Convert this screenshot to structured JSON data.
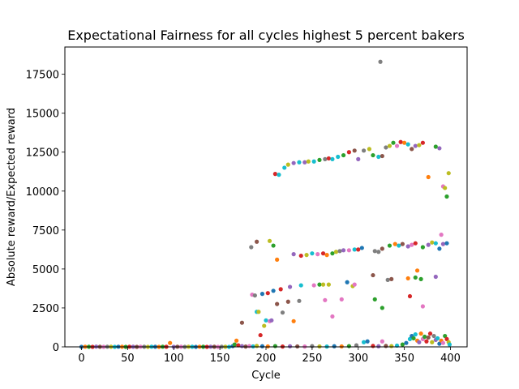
{
  "chart_data": {
    "type": "scatter",
    "title": "Expectational Fairness for all cycles highest 5 percent bakers",
    "xlabel": "Cycle",
    "ylabel": "Absolute reward/Expected reward",
    "xlim": [
      -18,
      418
    ],
    "ylim": [
      0,
      19250
    ],
    "xticks": [
      0,
      50,
      100,
      150,
      200,
      250,
      300,
      350,
      400
    ],
    "yticks": [
      0,
      2500,
      5000,
      7500,
      10000,
      12500,
      15000,
      17500
    ],
    "grid": false,
    "legend": "none",
    "palette": [
      "#1f77b4",
      "#ff7f0e",
      "#2ca02c",
      "#d62728",
      "#9467bd",
      "#8c564b",
      "#e377c2",
      "#7f7f7f",
      "#bcbd22",
      "#17becf"
    ],
    "points": [
      {
        "x": 0,
        "y": 0,
        "c": "#1f77b4"
      },
      {
        "x": 4,
        "y": 10,
        "c": "#ff7f0e"
      },
      {
        "x": 8,
        "y": 5,
        "c": "#2ca02c"
      },
      {
        "x": 12,
        "y": 0,
        "c": "#d62728"
      },
      {
        "x": 16,
        "y": 15,
        "c": "#9467bd"
      },
      {
        "x": 20,
        "y": 5,
        "c": "#8c564b"
      },
      {
        "x": 24,
        "y": 0,
        "c": "#e377c2"
      },
      {
        "x": 28,
        "y": 10,
        "c": "#7f7f7f"
      },
      {
        "x": 32,
        "y": 5,
        "c": "#bcbd22"
      },
      {
        "x": 36,
        "y": 0,
        "c": "#17becf"
      },
      {
        "x": 40,
        "y": 10,
        "c": "#1f77b4"
      },
      {
        "x": 44,
        "y": 5,
        "c": "#ff7f0e"
      },
      {
        "x": 48,
        "y": 0,
        "c": "#2ca02c"
      },
      {
        "x": 52,
        "y": 10,
        "c": "#d62728"
      },
      {
        "x": 56,
        "y": 5,
        "c": "#9467bd"
      },
      {
        "x": 60,
        "y": 0,
        "c": "#8c564b"
      },
      {
        "x": 64,
        "y": 10,
        "c": "#e377c2"
      },
      {
        "x": 68,
        "y": 5,
        "c": "#7f7f7f"
      },
      {
        "x": 72,
        "y": 0,
        "c": "#bcbd22"
      },
      {
        "x": 76,
        "y": 10,
        "c": "#17becf"
      },
      {
        "x": 80,
        "y": 5,
        "c": "#1f77b4"
      },
      {
        "x": 84,
        "y": 0,
        "c": "#ff7f0e"
      },
      {
        "x": 88,
        "y": 10,
        "c": "#2ca02c"
      },
      {
        "x": 92,
        "y": 5,
        "c": "#d62728"
      },
      {
        "x": 96,
        "y": 250,
        "c": "#ff7f0e"
      },
      {
        "x": 100,
        "y": 0,
        "c": "#9467bd"
      },
      {
        "x": 104,
        "y": 10,
        "c": "#8c564b"
      },
      {
        "x": 108,
        "y": 5,
        "c": "#e377c2"
      },
      {
        "x": 112,
        "y": 0,
        "c": "#7f7f7f"
      },
      {
        "x": 116,
        "y": 10,
        "c": "#bcbd22"
      },
      {
        "x": 120,
        "y": 5,
        "c": "#17becf"
      },
      {
        "x": 124,
        "y": 0,
        "c": "#1f77b4"
      },
      {
        "x": 128,
        "y": 10,
        "c": "#ff7f0e"
      },
      {
        "x": 132,
        "y": 5,
        "c": "#2ca02c"
      },
      {
        "x": 136,
        "y": 0,
        "c": "#d62728"
      },
      {
        "x": 140,
        "y": 10,
        "c": "#9467bd"
      },
      {
        "x": 144,
        "y": 5,
        "c": "#8c564b"
      },
      {
        "x": 148,
        "y": 0,
        "c": "#e377c2"
      },
      {
        "x": 152,
        "y": 10,
        "c": "#7f7f7f"
      },
      {
        "x": 156,
        "y": 5,
        "c": "#bcbd22"
      },
      {
        "x": 160,
        "y": 0,
        "c": "#17becf"
      },
      {
        "x": 164,
        "y": 50,
        "c": "#1f77b4"
      },
      {
        "x": 166,
        "y": 150,
        "c": "#2ca02c"
      },
      {
        "x": 168,
        "y": 400,
        "c": "#ff7f0e"
      },
      {
        "x": 170,
        "y": 100,
        "c": "#d62728"
      },
      {
        "x": 174,
        "y": 50,
        "c": "#9467bd"
      },
      {
        "x": 178,
        "y": 20,
        "c": "#8c564b"
      },
      {
        "x": 182,
        "y": 50,
        "c": "#e377c2"
      },
      {
        "x": 186,
        "y": 30,
        "c": "#17becf"
      },
      {
        "x": 190,
        "y": 60,
        "c": "#bcbd22"
      },
      {
        "x": 196,
        "y": 40,
        "c": "#1f77b4"
      },
      {
        "x": 202,
        "y": 30,
        "c": "#ff7f0e"
      },
      {
        "x": 210,
        "y": 50,
        "c": "#2ca02c"
      },
      {
        "x": 218,
        "y": 20,
        "c": "#d62728"
      },
      {
        "x": 226,
        "y": 40,
        "c": "#9467bd"
      },
      {
        "x": 234,
        "y": 30,
        "c": "#8c564b"
      },
      {
        "x": 242,
        "y": 20,
        "c": "#e377c2"
      },
      {
        "x": 250,
        "y": 50,
        "c": "#7f7f7f"
      },
      {
        "x": 258,
        "y": 30,
        "c": "#bcbd22"
      },
      {
        "x": 266,
        "y": 20,
        "c": "#17becf"
      },
      {
        "x": 274,
        "y": 40,
        "c": "#1f77b4"
      },
      {
        "x": 282,
        "y": 30,
        "c": "#ff7f0e"
      },
      {
        "x": 290,
        "y": 50,
        "c": "#2ca02c"
      },
      {
        "x": 298,
        "y": 100,
        "c": "#7f7f7f"
      },
      {
        "x": 306,
        "y": 300,
        "c": "#17becf"
      },
      {
        "x": 310,
        "y": 350,
        "c": "#1f77b4"
      },
      {
        "x": 316,
        "y": 60,
        "c": "#d62728"
      },
      {
        "x": 322,
        "y": 40,
        "c": "#9467bd"
      },
      {
        "x": 326,
        "y": 350,
        "c": "#e377c2"
      },
      {
        "x": 330,
        "y": 60,
        "c": "#8c564b"
      },
      {
        "x": 336,
        "y": 50,
        "c": "#bcbd22"
      },
      {
        "x": 342,
        "y": 80,
        "c": "#17becf"
      },
      {
        "x": 348,
        "y": 150,
        "c": "#2ca02c"
      },
      {
        "x": 352,
        "y": 250,
        "c": "#1f77b4"
      },
      {
        "x": 356,
        "y": 500,
        "c": "#17becf"
      },
      {
        "x": 358,
        "y": 700,
        "c": "#1f77b4"
      },
      {
        "x": 360,
        "y": 550,
        "c": "#2ca02c"
      },
      {
        "x": 362,
        "y": 800,
        "c": "#17becf"
      },
      {
        "x": 364,
        "y": 400,
        "c": "#ff7f0e"
      },
      {
        "x": 366,
        "y": 300,
        "c": "#9467bd"
      },
      {
        "x": 368,
        "y": 850,
        "c": "#ff7f0e"
      },
      {
        "x": 370,
        "y": 500,
        "c": "#e377c2"
      },
      {
        "x": 372,
        "y": 650,
        "c": "#2ca02c"
      },
      {
        "x": 374,
        "y": 350,
        "c": "#d62728"
      },
      {
        "x": 376,
        "y": 600,
        "c": "#8c564b"
      },
      {
        "x": 378,
        "y": 850,
        "c": "#d62728"
      },
      {
        "x": 380,
        "y": 300,
        "c": "#bcbd22"
      },
      {
        "x": 382,
        "y": 700,
        "c": "#7f7f7f"
      },
      {
        "x": 384,
        "y": 450,
        "c": "#9467bd"
      },
      {
        "x": 386,
        "y": 550,
        "c": "#17becf"
      },
      {
        "x": 388,
        "y": 200,
        "c": "#1f77b4"
      },
      {
        "x": 390,
        "y": 400,
        "c": "#ff7f0e"
      },
      {
        "x": 392,
        "y": 250,
        "c": "#e377c2"
      },
      {
        "x": 394,
        "y": 700,
        "c": "#2ca02c"
      },
      {
        "x": 396,
        "y": 500,
        "c": "#d62728"
      },
      {
        "x": 398,
        "y": 300,
        "c": "#bcbd22"
      },
      {
        "x": 399,
        "y": 150,
        "c": "#17becf"
      },
      {
        "x": 174,
        "y": 1550,
        "c": "#8c564b"
      },
      {
        "x": 185,
        "y": 3350,
        "c": "#e377c2"
      },
      {
        "x": 188,
        "y": 3300,
        "c": "#7f7f7f"
      },
      {
        "x": 190,
        "y": 2250,
        "c": "#17becf"
      },
      {
        "x": 192,
        "y": 2250,
        "c": "#bcbd22"
      },
      {
        "x": 194,
        "y": 750,
        "c": "#d62728"
      },
      {
        "x": 196,
        "y": 3400,
        "c": "#1f77b4"
      },
      {
        "x": 198,
        "y": 1350,
        "c": "#bcbd22"
      },
      {
        "x": 200,
        "y": 1700,
        "c": "#17becf"
      },
      {
        "x": 202,
        "y": 3450,
        "c": "#d62728"
      },
      {
        "x": 204,
        "y": 1650,
        "c": "#e377c2"
      },
      {
        "x": 206,
        "y": 1700,
        "c": "#9467bd"
      },
      {
        "x": 208,
        "y": 3600,
        "c": "#1f77b4"
      },
      {
        "x": 212,
        "y": 2750,
        "c": "#8c564b"
      },
      {
        "x": 216,
        "y": 3700,
        "c": "#d62728"
      },
      {
        "x": 218,
        "y": 2200,
        "c": "#7f7f7f"
      },
      {
        "x": 224,
        "y": 2900,
        "c": "#8c564b"
      },
      {
        "x": 226,
        "y": 3850,
        "c": "#9467bd"
      },
      {
        "x": 230,
        "y": 1650,
        "c": "#ff7f0e"
      },
      {
        "x": 236,
        "y": 2950,
        "c": "#7f7f7f"
      },
      {
        "x": 238,
        "y": 3950,
        "c": "#17becf"
      },
      {
        "x": 252,
        "y": 3950,
        "c": "#e377c2"
      },
      {
        "x": 258,
        "y": 4000,
        "c": "#2ca02c"
      },
      {
        "x": 262,
        "y": 4000,
        "c": "#bcbd22"
      },
      {
        "x": 264,
        "y": 3000,
        "c": "#e377c2"
      },
      {
        "x": 268,
        "y": 4000,
        "c": "#bcbd22"
      },
      {
        "x": 272,
        "y": 1950,
        "c": "#e377c2"
      },
      {
        "x": 282,
        "y": 3050,
        "c": "#e377c2"
      },
      {
        "x": 288,
        "y": 4150,
        "c": "#1f77b4"
      },
      {
        "x": 294,
        "y": 3900,
        "c": "#bcbd22"
      },
      {
        "x": 296,
        "y": 4000,
        "c": "#e377c2"
      },
      {
        "x": 316,
        "y": 4600,
        "c": "#8c564b"
      },
      {
        "x": 318,
        "y": 3050,
        "c": "#2ca02c"
      },
      {
        "x": 326,
        "y": 2500,
        "c": "#2ca02c"
      },
      {
        "x": 332,
        "y": 4300,
        "c": "#7f7f7f"
      },
      {
        "x": 336,
        "y": 4350,
        "c": "#8c564b"
      },
      {
        "x": 354,
        "y": 4400,
        "c": "#ff7f0e"
      },
      {
        "x": 356,
        "y": 3250,
        "c": "#d62728"
      },
      {
        "x": 362,
        "y": 4450,
        "c": "#2ca02c"
      },
      {
        "x": 364,
        "y": 4900,
        "c": "#ff7f0e"
      },
      {
        "x": 368,
        "y": 4350,
        "c": "#2ca02c"
      },
      {
        "x": 370,
        "y": 2600,
        "c": "#e377c2"
      },
      {
        "x": 384,
        "y": 4500,
        "c": "#9467bd"
      },
      {
        "x": 184,
        "y": 6400,
        "c": "#7f7f7f"
      },
      {
        "x": 190,
        "y": 6750,
        "c": "#8c564b"
      },
      {
        "x": 204,
        "y": 6800,
        "c": "#bcbd22"
      },
      {
        "x": 208,
        "y": 6500,
        "c": "#2ca02c"
      },
      {
        "x": 212,
        "y": 5600,
        "c": "#ff7f0e"
      },
      {
        "x": 230,
        "y": 5950,
        "c": "#9467bd"
      },
      {
        "x": 238,
        "y": 5850,
        "c": "#d62728"
      },
      {
        "x": 244,
        "y": 5900,
        "c": "#bcbd22"
      },
      {
        "x": 250,
        "y": 6000,
        "c": "#17becf"
      },
      {
        "x": 256,
        "y": 5950,
        "c": "#e377c2"
      },
      {
        "x": 262,
        "y": 6000,
        "c": "#d62728"
      },
      {
        "x": 266,
        "y": 5900,
        "c": "#ff7f0e"
      },
      {
        "x": 272,
        "y": 6000,
        "c": "#2ca02c"
      },
      {
        "x": 276,
        "y": 6100,
        "c": "#bcbd22"
      },
      {
        "x": 280,
        "y": 6150,
        "c": "#7f7f7f"
      },
      {
        "x": 284,
        "y": 6200,
        "c": "#9467bd"
      },
      {
        "x": 290,
        "y": 6200,
        "c": "#e377c2"
      },
      {
        "x": 296,
        "y": 6250,
        "c": "#17becf"
      },
      {
        "x": 300,
        "y": 6250,
        "c": "#d62728"
      },
      {
        "x": 304,
        "y": 6350,
        "c": "#1f77b4"
      },
      {
        "x": 318,
        "y": 6150,
        "c": "#7f7f7f"
      },
      {
        "x": 322,
        "y": 6100,
        "c": "#7f7f7f"
      },
      {
        "x": 326,
        "y": 6300,
        "c": "#8c564b"
      },
      {
        "x": 334,
        "y": 6500,
        "c": "#2ca02c"
      },
      {
        "x": 340,
        "y": 6600,
        "c": "#ff7f0e"
      },
      {
        "x": 344,
        "y": 6500,
        "c": "#17becf"
      },
      {
        "x": 348,
        "y": 6600,
        "c": "#8c564b"
      },
      {
        "x": 354,
        "y": 6450,
        "c": "#9467bd"
      },
      {
        "x": 358,
        "y": 6550,
        "c": "#e377c2"
      },
      {
        "x": 362,
        "y": 6650,
        "c": "#d62728"
      },
      {
        "x": 370,
        "y": 6400,
        "c": "#2ca02c"
      },
      {
        "x": 376,
        "y": 6550,
        "c": "#9467bd"
      },
      {
        "x": 380,
        "y": 6700,
        "c": "#bcbd22"
      },
      {
        "x": 384,
        "y": 6650,
        "c": "#17becf"
      },
      {
        "x": 388,
        "y": 6300,
        "c": "#1f77b4"
      },
      {
        "x": 390,
        "y": 7200,
        "c": "#e377c2"
      },
      {
        "x": 392,
        "y": 6600,
        "c": "#9467bd"
      },
      {
        "x": 396,
        "y": 6650,
        "c": "#1f77b4"
      },
      {
        "x": 376,
        "y": 10900,
        "c": "#ff7f0e"
      },
      {
        "x": 392,
        "y": 10300,
        "c": "#e377c2"
      },
      {
        "x": 394,
        "y": 10200,
        "c": "#bcbd22"
      },
      {
        "x": 396,
        "y": 9650,
        "c": "#2ca02c"
      },
      {
        "x": 398,
        "y": 11150,
        "c": "#bcbd22"
      },
      {
        "x": 210,
        "y": 11100,
        "c": "#d62728"
      },
      {
        "x": 214,
        "y": 11050,
        "c": "#17becf"
      },
      {
        "x": 220,
        "y": 11500,
        "c": "#17becf"
      },
      {
        "x": 224,
        "y": 11700,
        "c": "#bcbd22"
      },
      {
        "x": 230,
        "y": 11800,
        "c": "#9467bd"
      },
      {
        "x": 236,
        "y": 11850,
        "c": "#17becf"
      },
      {
        "x": 242,
        "y": 11850,
        "c": "#9467bd"
      },
      {
        "x": 246,
        "y": 11900,
        "c": "#bcbd22"
      },
      {
        "x": 252,
        "y": 11900,
        "c": "#17becf"
      },
      {
        "x": 258,
        "y": 12000,
        "c": "#2ca02c"
      },
      {
        "x": 264,
        "y": 12050,
        "c": "#7f7f7f"
      },
      {
        "x": 268,
        "y": 12100,
        "c": "#d62728"
      },
      {
        "x": 272,
        "y": 12050,
        "c": "#17becf"
      },
      {
        "x": 278,
        "y": 12200,
        "c": "#17becf"
      },
      {
        "x": 284,
        "y": 12300,
        "c": "#2ca02c"
      },
      {
        "x": 290,
        "y": 12500,
        "c": "#d62728"
      },
      {
        "x": 296,
        "y": 12600,
        "c": "#8c564b"
      },
      {
        "x": 300,
        "y": 12050,
        "c": "#9467bd"
      },
      {
        "x": 306,
        "y": 12600,
        "c": "#7f7f7f"
      },
      {
        "x": 312,
        "y": 12700,
        "c": "#bcbd22"
      },
      {
        "x": 316,
        "y": 12300,
        "c": "#2ca02c"
      },
      {
        "x": 322,
        "y": 12200,
        "c": "#17becf"
      },
      {
        "x": 326,
        "y": 12250,
        "c": "#8c564b"
      },
      {
        "x": 330,
        "y": 12800,
        "c": "#7f7f7f"
      },
      {
        "x": 334,
        "y": 12900,
        "c": "#bcbd22"
      },
      {
        "x": 338,
        "y": 13100,
        "c": "#2ca02c"
      },
      {
        "x": 342,
        "y": 12900,
        "c": "#e377c2"
      },
      {
        "x": 346,
        "y": 13150,
        "c": "#d62728"
      },
      {
        "x": 350,
        "y": 13100,
        "c": "#ff7f0e"
      },
      {
        "x": 354,
        "y": 13000,
        "c": "#17becf"
      },
      {
        "x": 358,
        "y": 12700,
        "c": "#8c564b"
      },
      {
        "x": 362,
        "y": 12900,
        "c": "#9467bd"
      },
      {
        "x": 366,
        "y": 12950,
        "c": "#bcbd22"
      },
      {
        "x": 370,
        "y": 13100,
        "c": "#d62728"
      },
      {
        "x": 384,
        "y": 12850,
        "c": "#2ca02c"
      },
      {
        "x": 388,
        "y": 12750,
        "c": "#9467bd"
      },
      {
        "x": 324,
        "y": 18300,
        "c": "#7f7f7f"
      }
    ]
  }
}
